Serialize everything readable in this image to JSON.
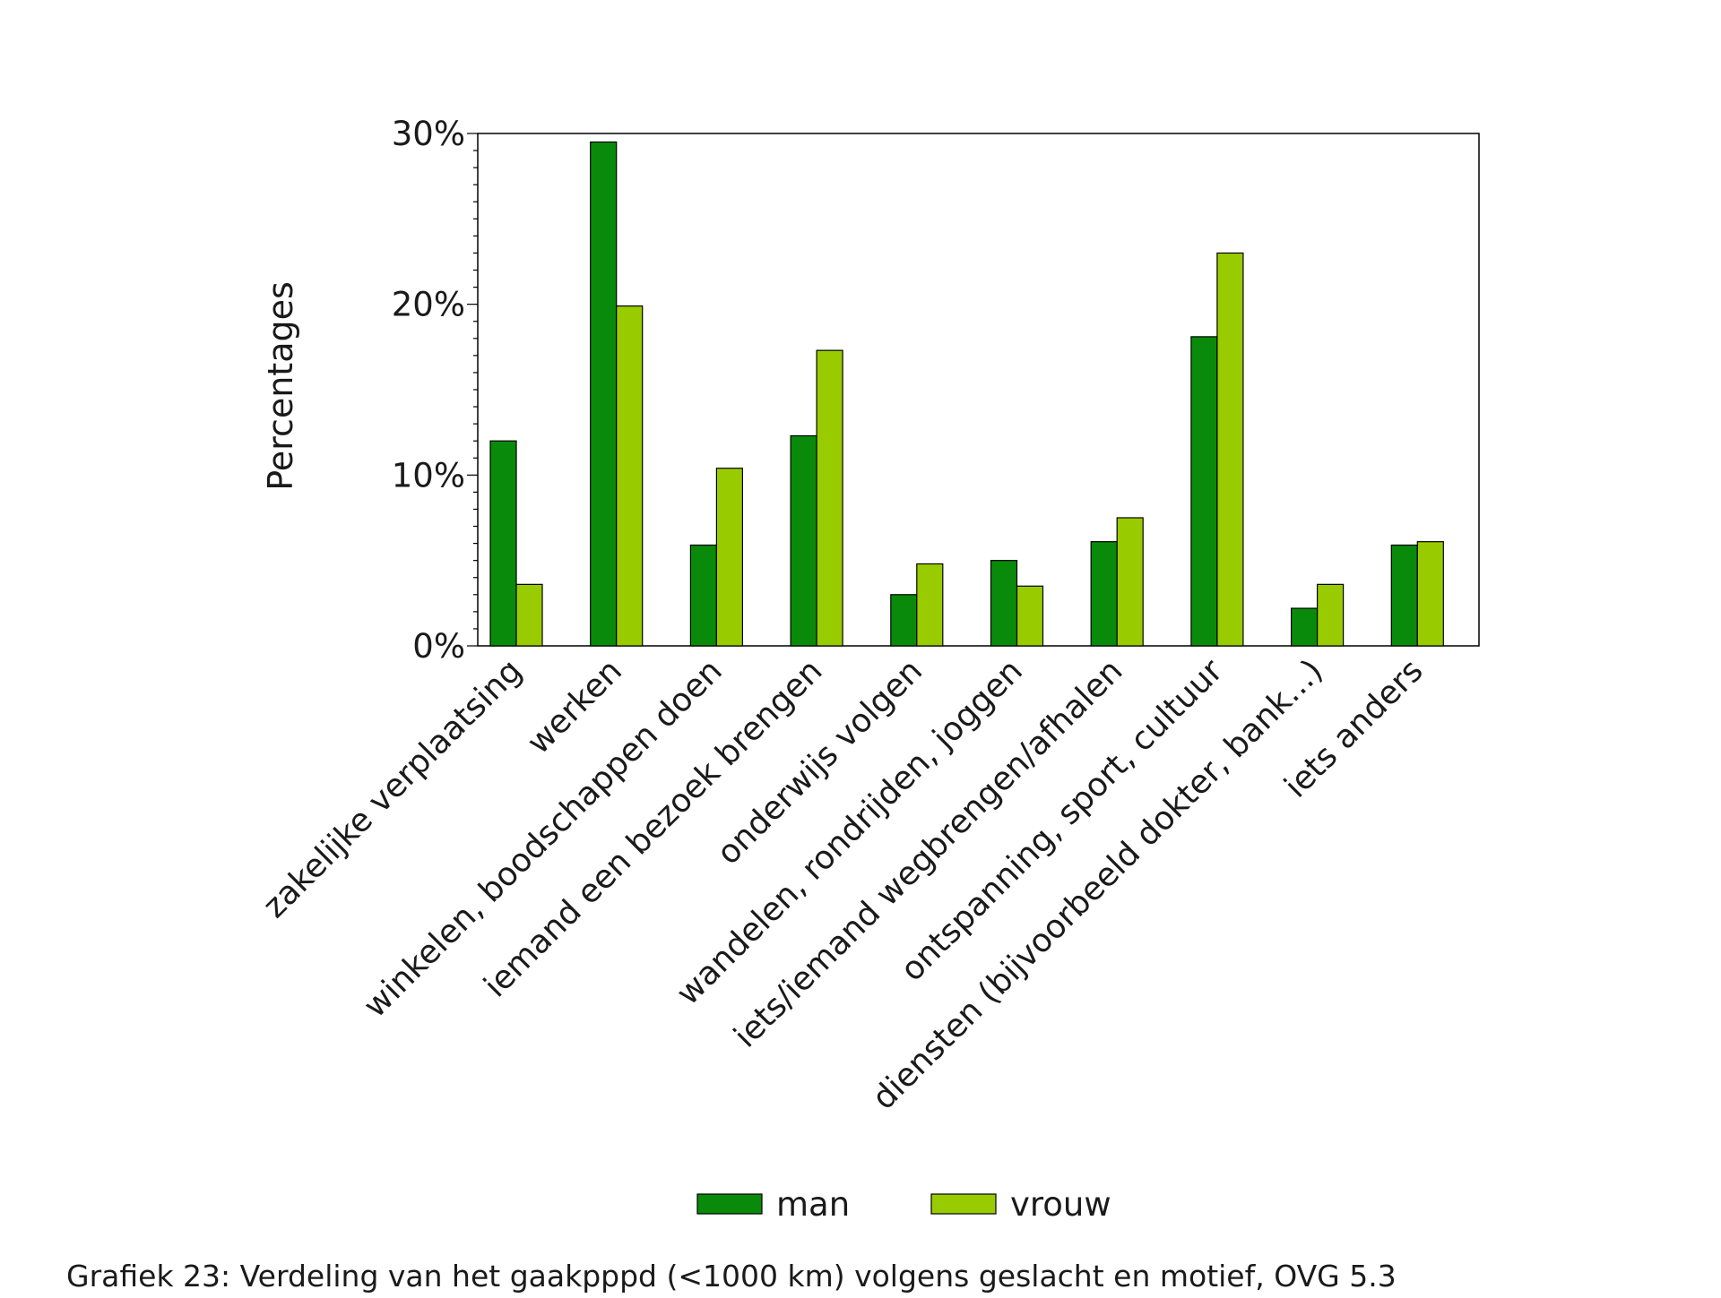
{
  "chart_data": {
    "type": "bar",
    "ylabel": "Percentages",
    "ylim": [
      0,
      30
    ],
    "yticks": [
      0,
      10,
      20,
      30
    ],
    "ytick_labels": [
      "0%",
      "10%",
      "20%",
      "30%"
    ],
    "categories": [
      "zakelijke verplaatsing",
      "werken",
      "winkelen, boodschappen doen",
      "iemand een bezoek brengen",
      "onderwijs volgen",
      "wandelen, rondrijden, joggen",
      "iets/iemand wegbrengen/afhalen",
      "ontspanning, sport, cultuur",
      "diensten (bijvoorbeeld dokter, bank...)",
      "iets anders"
    ],
    "series": [
      {
        "name": "man",
        "color": "#0a8a0a",
        "values": [
          12.0,
          29.5,
          5.9,
          12.3,
          3.0,
          5.0,
          6.1,
          18.1,
          2.2,
          5.9
        ]
      },
      {
        "name": "vrouw",
        "color": "#99cc00",
        "values": [
          3.6,
          19.9,
          10.4,
          17.3,
          4.8,
          3.5,
          7.5,
          23.0,
          3.6,
          6.1
        ]
      }
    ],
    "legend_position": "bottom",
    "grid": false
  },
  "caption": "Grafiek 23: Verdeling van het gaakpppd (<1000 km) volgens geslacht en motief, OVG 5.3"
}
